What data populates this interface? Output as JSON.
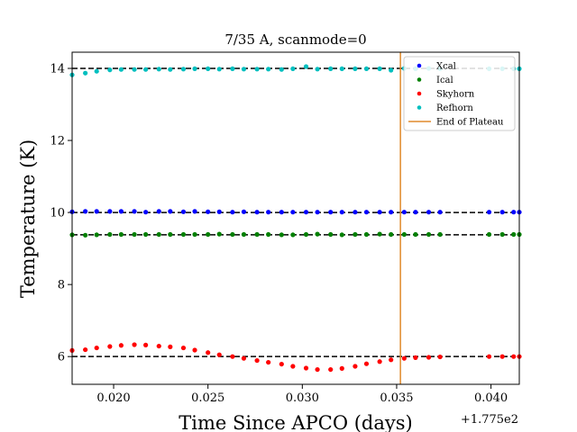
{
  "chart_data": {
    "type": "scatter",
    "title": "7/35 A, scanmode=0",
    "xlabel": "Time Since APCO (days)",
    "ylabel": "Temperature (K)",
    "x_offset_label": "+1.775e2",
    "xlim": [
      0.0178,
      0.0415
    ],
    "ylim": [
      5.23,
      14.45
    ],
    "xticks": [
      0.02,
      0.025,
      0.03,
      0.035,
      0.04
    ],
    "xtick_labels": [
      "0.020",
      "0.025",
      "0.030",
      "0.035",
      "0.040"
    ],
    "yticks": [
      6,
      8,
      10,
      12,
      14
    ],
    "ytick_labels": [
      "6",
      "8",
      "10",
      "12",
      "14"
    ],
    "grid": false,
    "legend_position": "top-right",
    "x": [
      0.0178,
      0.0185,
      0.0191,
      0.0198,
      0.0204,
      0.0211,
      0.0217,
      0.0224,
      0.023,
      0.0237,
      0.0243,
      0.025,
      0.0256,
      0.0263,
      0.0269,
      0.0276,
      0.0282,
      0.0289,
      0.0295,
      0.0302,
      0.0308,
      0.0315,
      0.0321,
      0.0328,
      0.0334,
      0.0341,
      0.0347,
      0.0354,
      0.036,
      0.0367,
      0.0373,
      0.0399,
      0.0406,
      0.0412,
      0.0415
    ],
    "series": [
      {
        "name": "Xcal",
        "color": "#0000ff",
        "values": [
          10.02,
          10.03,
          10.03,
          10.03,
          10.03,
          10.03,
          10.01,
          10.03,
          10.03,
          10.02,
          10.03,
          10.02,
          10.02,
          10.01,
          10.02,
          10.01,
          10.01,
          10.01,
          10.01,
          10.01,
          10.01,
          10.01,
          10.01,
          10.01,
          10.01,
          10.01,
          10.01,
          10.01,
          10.01,
          10.01,
          10.01,
          10.01,
          10.01,
          10.01,
          10.01
        ]
      },
      {
        "name": "Ical",
        "color": "#008000",
        "values": [
          9.38,
          9.37,
          9.38,
          9.39,
          9.39,
          9.39,
          9.39,
          9.39,
          9.39,
          9.39,
          9.39,
          9.39,
          9.4,
          9.39,
          9.39,
          9.39,
          9.39,
          9.38,
          9.38,
          9.39,
          9.4,
          9.39,
          9.38,
          9.39,
          9.39,
          9.4,
          9.39,
          9.39,
          9.39,
          9.39,
          9.39,
          9.39,
          9.39,
          9.39,
          9.39
        ]
      },
      {
        "name": "Skyhorn",
        "color": "#ff0000",
        "values": [
          6.17,
          6.19,
          6.24,
          6.28,
          6.31,
          6.33,
          6.32,
          6.29,
          6.27,
          6.24,
          6.18,
          6.11,
          6.05,
          6.0,
          5.95,
          5.89,
          5.84,
          5.79,
          5.73,
          5.68,
          5.64,
          5.64,
          5.67,
          5.73,
          5.8,
          5.86,
          5.91,
          5.95,
          5.97,
          5.98,
          5.99,
          6.0,
          6.0,
          6.0,
          6.0
        ]
      },
      {
        "name": "Refhorn",
        "color": "#00bfbf",
        "values": [
          13.82,
          13.87,
          13.92,
          13.96,
          13.97,
          13.97,
          13.97,
          13.98,
          13.97,
          13.98,
          13.99,
          13.99,
          13.98,
          13.99,
          13.98,
          13.98,
          13.98,
          13.97,
          13.99,
          14.05,
          13.98,
          13.99,
          13.99,
          13.99,
          13.99,
          13.99,
          13.95,
          14.0,
          13.99,
          14.0,
          13.99,
          13.99,
          13.99,
          13.99,
          13.99
        ]
      }
    ],
    "reference_lines": {
      "color": "#000000",
      "values": [
        14.0,
        10.0,
        9.38,
        6.0
      ]
    },
    "plateau_end": {
      "name": "End of Plateau",
      "color": "#e08a2c",
      "x": 0.0352
    }
  }
}
